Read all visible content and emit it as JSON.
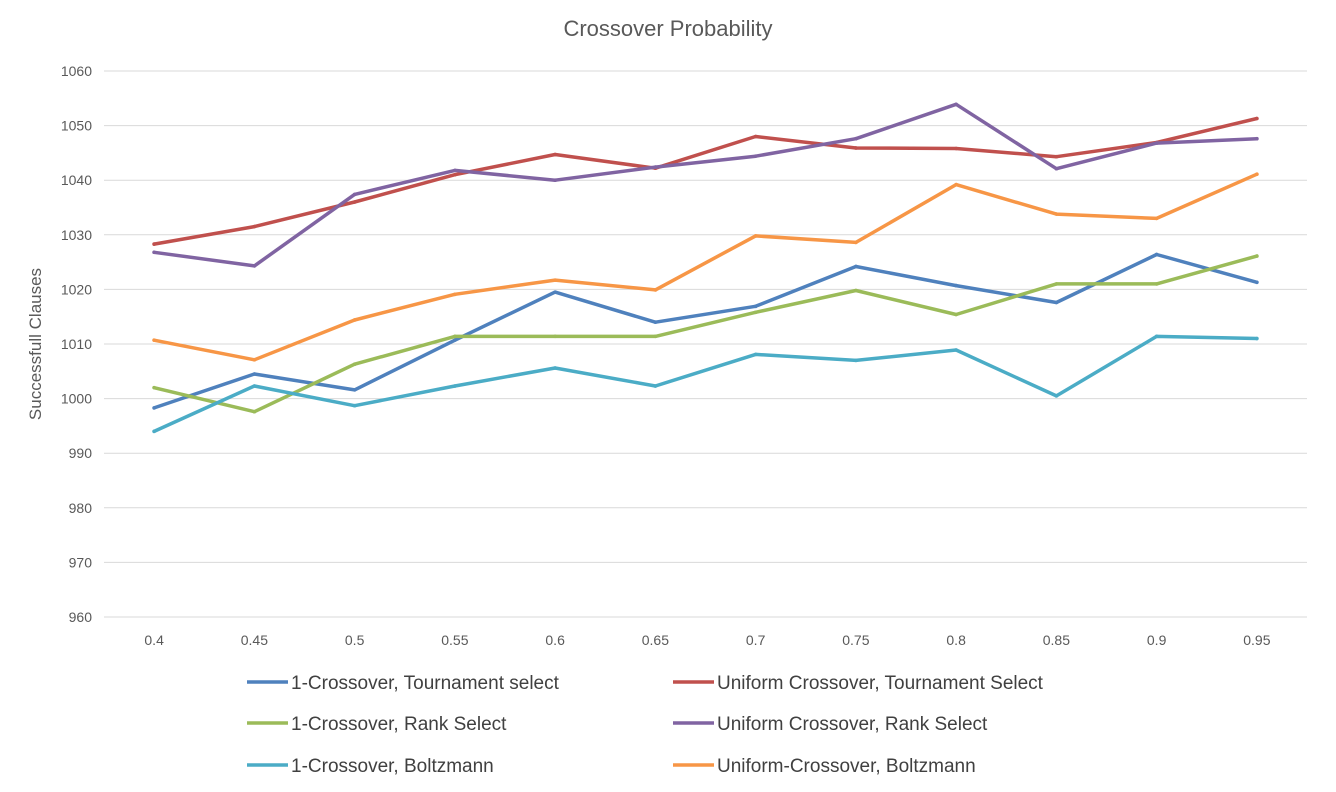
{
  "chart_data": {
    "type": "line",
    "title": "Crossover Probability",
    "xlabel": "",
    "ylabel": "Successfull Clauses",
    "ylim": [
      960,
      1060
    ],
    "yticks": [
      960,
      970,
      980,
      990,
      1000,
      1010,
      1020,
      1030,
      1040,
      1050,
      1060
    ],
    "categories": [
      "0.4",
      "0.45",
      "0.5",
      "0.55",
      "0.6",
      "0.65",
      "0.7",
      "0.75",
      "0.8",
      "0.85",
      "0.9",
      "0.95"
    ],
    "grid": true,
    "legend_position": "bottom",
    "series": [
      {
        "name": "1-Crossover, Tournament select",
        "color": "#4f81bd",
        "values": [
          998.3,
          1004.5,
          1001.6,
          1010.7,
          1019.5,
          1014.0,
          1016.9,
          1024.2,
          1020.7,
          1017.6,
          1026.4,
          1021.3
        ]
      },
      {
        "name": "Uniform Crossover, Tournament Select",
        "color": "#c0504d",
        "values": [
          1028.3,
          1031.5,
          1036.0,
          1041.0,
          1044.7,
          1042.2,
          1048.0,
          1045.9,
          1045.8,
          1044.3,
          1046.9,
          1051.3
        ]
      },
      {
        "name": "1-Crossover, Rank Select",
        "color": "#9bbb59",
        "values": [
          1002.0,
          997.6,
          1006.3,
          1011.4,
          1011.4,
          1011.4,
          1015.8,
          1019.8,
          1015.4,
          1021.0,
          1021.0,
          1026.1
        ]
      },
      {
        "name": "Uniform Crossover, Rank Select",
        "color": "#8064a2",
        "values": [
          1026.8,
          1024.3,
          1037.4,
          1041.8,
          1040.0,
          1042.4,
          1044.4,
          1047.6,
          1053.9,
          1042.1,
          1046.8,
          1047.6
        ]
      },
      {
        "name": "1-Crossover, Boltzmann",
        "color": "#4bacc6",
        "values": [
          994.0,
          1002.3,
          998.7,
          1002.3,
          1005.6,
          1002.3,
          1008.1,
          1007.0,
          1008.9,
          1000.5,
          1011.4,
          1011.0
        ]
      },
      {
        "name": "Uniform-Crossover, Boltzmann",
        "color": "#f79646",
        "values": [
          1010.7,
          1007.1,
          1014.4,
          1019.1,
          1021.7,
          1019.9,
          1029.8,
          1028.6,
          1039.2,
          1033.8,
          1033.0,
          1041.1
        ]
      }
    ]
  }
}
